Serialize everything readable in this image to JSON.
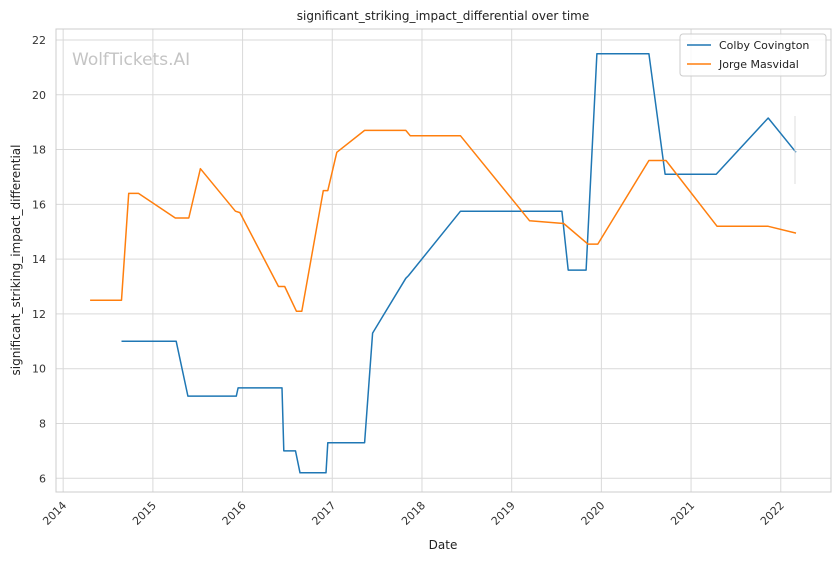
{
  "chart_data": {
    "type": "line",
    "title": "significant_striking_impact_differential over time",
    "xlabel": "Date",
    "ylabel": "significant_striking_impact_differential",
    "x_ticks": [
      "2014",
      "2015",
      "2016",
      "2017",
      "2018",
      "2019",
      "2020",
      "2021",
      "2022"
    ],
    "y_ticks": [
      "6",
      "8",
      "10",
      "12",
      "14",
      "16",
      "18",
      "20",
      "22"
    ],
    "xlim": [
      2013.92,
      2022.56
    ],
    "ylim": [
      5.5,
      22.4
    ],
    "grid": true,
    "legend_position": "top-right",
    "watermark": "WolfTickets.AI",
    "series": [
      {
        "name": "Colby Covington",
        "color": "#1f77b4",
        "points": [
          [
            2014.65,
            11.0
          ],
          [
            2015.26,
            11.0
          ],
          [
            2015.39,
            9.0
          ],
          [
            2015.93,
            9.0
          ],
          [
            2015.95,
            9.3
          ],
          [
            2016.44,
            9.3
          ],
          [
            2016.46,
            7.0
          ],
          [
            2016.59,
            7.0
          ],
          [
            2016.64,
            6.2
          ],
          [
            2016.93,
            6.2
          ],
          [
            2016.95,
            7.3
          ],
          [
            2017.36,
            7.3
          ],
          [
            2017.45,
            11.3
          ],
          [
            2017.82,
            13.3
          ],
          [
            2017.85,
            13.4
          ],
          [
            2018.43,
            15.75
          ],
          [
            2019.56,
            15.75
          ],
          [
            2019.63,
            13.6
          ],
          [
            2019.83,
            13.6
          ],
          [
            2019.95,
            21.5
          ],
          [
            2020.53,
            21.5
          ],
          [
            2020.71,
            17.1
          ],
          [
            2021.28,
            17.1
          ],
          [
            2021.86,
            19.15
          ],
          [
            2022.17,
            17.9
          ]
        ]
      },
      {
        "name": "Jorge Masvidal",
        "color": "#ff7f0e",
        "points": [
          [
            2014.3,
            12.5
          ],
          [
            2014.65,
            12.5
          ],
          [
            2014.73,
            16.4
          ],
          [
            2014.84,
            16.4
          ],
          [
            2015.25,
            15.5
          ],
          [
            2015.4,
            15.5
          ],
          [
            2015.53,
            17.3
          ],
          [
            2015.92,
            15.75
          ],
          [
            2015.97,
            15.7
          ],
          [
            2016.4,
            13.0
          ],
          [
            2016.47,
            13.0
          ],
          [
            2016.6,
            12.1
          ],
          [
            2016.66,
            12.1
          ],
          [
            2016.9,
            16.5
          ],
          [
            2016.95,
            16.5
          ],
          [
            2017.05,
            17.9
          ],
          [
            2017.36,
            18.7
          ],
          [
            2017.82,
            18.7
          ],
          [
            2017.87,
            18.5
          ],
          [
            2018.43,
            18.5
          ],
          [
            2019.2,
            15.4
          ],
          [
            2019.58,
            15.3
          ],
          [
            2019.85,
            14.55
          ],
          [
            2019.96,
            14.55
          ],
          [
            2020.53,
            17.6
          ],
          [
            2020.72,
            17.6
          ],
          [
            2021.29,
            15.2
          ],
          [
            2021.86,
            15.2
          ],
          [
            2022.17,
            14.95
          ]
        ]
      }
    ]
  }
}
